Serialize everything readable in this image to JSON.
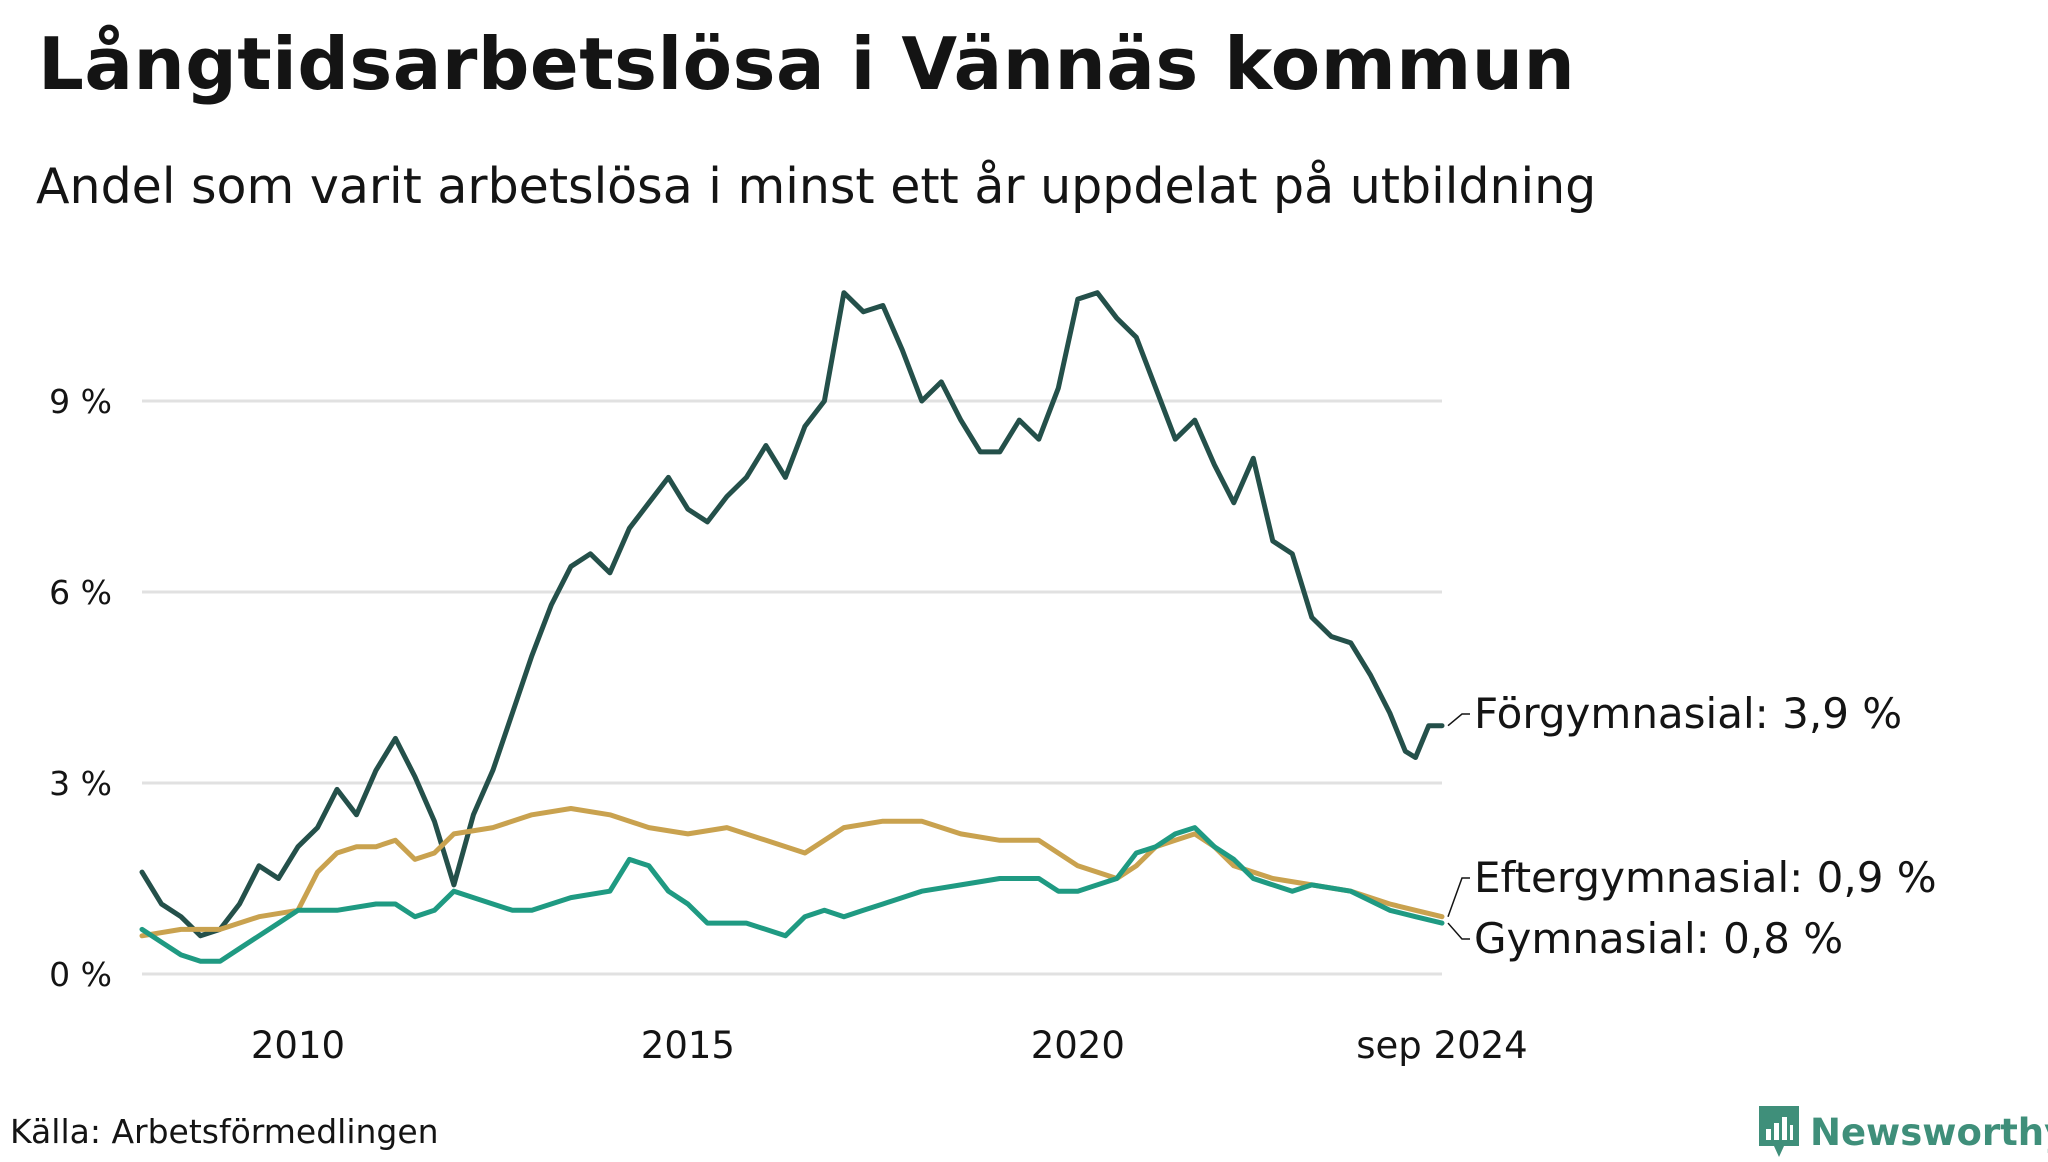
{
  "header": {
    "title": "Långtidsarbetslösa i Vännäs kommun",
    "subtitle": "Andel som varit arbetslösa i minst ett år uppdelat på utbildning"
  },
  "footer": {
    "source": "Källa: Arbetsförmedlingen",
    "brand": "Newsworthy",
    "brand_icon": "bar-chart-icon"
  },
  "chart_data": {
    "type": "line",
    "title": "Långtidsarbetslösa i Vännäs kommun",
    "subtitle": "Andel som varit arbetslösa i minst ett år uppdelat på utbildning",
    "xlabel": "",
    "ylabel": "",
    "xlim": [
      2008.0,
      2024.67
    ],
    "ylim": [
      0,
      11
    ],
    "yticks": [
      0,
      3,
      6,
      9
    ],
    "ytick_labels": [
      "0 %",
      "3 %",
      "6 %",
      "9 %"
    ],
    "xticks": [
      2010,
      2015,
      2020,
      2024.67
    ],
    "xtick_labels": [
      "2010",
      "2015",
      "2020",
      "sep 2024"
    ],
    "grid": "horizontal",
    "legend": "end-of-line labels",
    "series": [
      {
        "name": "Förgymnasial",
        "end_label": "Förgymnasial: 3,9 %",
        "color": "#24504a",
        "points": [
          [
            2008.0,
            1.6
          ],
          [
            2008.25,
            1.1
          ],
          [
            2008.5,
            0.9
          ],
          [
            2008.75,
            0.6
          ],
          [
            2009.0,
            0.7
          ],
          [
            2009.25,
            1.1
          ],
          [
            2009.5,
            1.7
          ],
          [
            2009.75,
            1.5
          ],
          [
            2010.0,
            2.0
          ],
          [
            2010.25,
            2.3
          ],
          [
            2010.5,
            2.9
          ],
          [
            2010.75,
            2.5
          ],
          [
            2011.0,
            3.2
          ],
          [
            2011.25,
            3.7
          ],
          [
            2011.5,
            3.1
          ],
          [
            2011.75,
            2.4
          ],
          [
            2012.0,
            1.4
          ],
          [
            2012.25,
            2.5
          ],
          [
            2012.5,
            3.2
          ],
          [
            2012.75,
            4.1
          ],
          [
            2013.0,
            5.0
          ],
          [
            2013.25,
            5.8
          ],
          [
            2013.5,
            6.4
          ],
          [
            2013.75,
            6.6
          ],
          [
            2014.0,
            6.3
          ],
          [
            2014.25,
            7.0
          ],
          [
            2014.5,
            7.4
          ],
          [
            2014.75,
            7.8
          ],
          [
            2015.0,
            7.3
          ],
          [
            2015.25,
            7.1
          ],
          [
            2015.5,
            7.5
          ],
          [
            2015.75,
            7.8
          ],
          [
            2016.0,
            8.3
          ],
          [
            2016.25,
            7.8
          ],
          [
            2016.5,
            8.6
          ],
          [
            2016.75,
            9.0
          ],
          [
            2017.0,
            10.7
          ],
          [
            2017.25,
            10.4
          ],
          [
            2017.5,
            10.5
          ],
          [
            2017.75,
            9.8
          ],
          [
            2018.0,
            9.0
          ],
          [
            2018.25,
            9.3
          ],
          [
            2018.5,
            8.7
          ],
          [
            2018.75,
            8.2
          ],
          [
            2019.0,
            8.2
          ],
          [
            2019.25,
            8.7
          ],
          [
            2019.5,
            8.4
          ],
          [
            2019.75,
            9.2
          ],
          [
            2020.0,
            10.6
          ],
          [
            2020.25,
            10.7
          ],
          [
            2020.5,
            10.3
          ],
          [
            2020.75,
            10.0
          ],
          [
            2021.0,
            9.2
          ],
          [
            2021.25,
            8.4
          ],
          [
            2021.5,
            8.7
          ],
          [
            2021.75,
            8.0
          ],
          [
            2022.0,
            7.4
          ],
          [
            2022.25,
            8.1
          ],
          [
            2022.5,
            6.8
          ],
          [
            2022.75,
            6.6
          ],
          [
            2023.0,
            5.6
          ],
          [
            2023.25,
            5.3
          ],
          [
            2023.5,
            5.2
          ],
          [
            2023.75,
            4.7
          ],
          [
            2024.0,
            4.1
          ],
          [
            2024.2,
            3.5
          ],
          [
            2024.33,
            3.4
          ],
          [
            2024.5,
            3.9
          ],
          [
            2024.67,
            3.9
          ]
        ]
      },
      {
        "name": "Eftergymnasial",
        "end_label": "Eftergymnasial: 0,9 %",
        "color": "#c9a24f",
        "points": [
          [
            2008.0,
            0.6
          ],
          [
            2008.5,
            0.7
          ],
          [
            2009.0,
            0.7
          ],
          [
            2009.5,
            0.9
          ],
          [
            2010.0,
            1.0
          ],
          [
            2010.25,
            1.6
          ],
          [
            2010.5,
            1.9
          ],
          [
            2010.75,
            2.0
          ],
          [
            2011.0,
            2.0
          ],
          [
            2011.25,
            2.1
          ],
          [
            2011.5,
            1.8
          ],
          [
            2011.75,
            1.9
          ],
          [
            2012.0,
            2.2
          ],
          [
            2012.5,
            2.3
          ],
          [
            2013.0,
            2.5
          ],
          [
            2013.5,
            2.6
          ],
          [
            2014.0,
            2.5
          ],
          [
            2014.5,
            2.3
          ],
          [
            2015.0,
            2.2
          ],
          [
            2015.5,
            2.3
          ],
          [
            2016.0,
            2.1
          ],
          [
            2016.5,
            1.9
          ],
          [
            2017.0,
            2.3
          ],
          [
            2017.5,
            2.4
          ],
          [
            2018.0,
            2.4
          ],
          [
            2018.5,
            2.2
          ],
          [
            2019.0,
            2.1
          ],
          [
            2019.5,
            2.1
          ],
          [
            2020.0,
            1.7
          ],
          [
            2020.25,
            1.6
          ],
          [
            2020.5,
            1.5
          ],
          [
            2020.75,
            1.7
          ],
          [
            2021.0,
            2.0
          ],
          [
            2021.25,
            2.1
          ],
          [
            2021.5,
            2.2
          ],
          [
            2021.75,
            2.0
          ],
          [
            2022.0,
            1.7
          ],
          [
            2022.5,
            1.5
          ],
          [
            2023.0,
            1.4
          ],
          [
            2023.5,
            1.3
          ],
          [
            2024.0,
            1.1
          ],
          [
            2024.33,
            1.0
          ],
          [
            2024.67,
            0.9
          ]
        ]
      },
      {
        "name": "Gymnasial",
        "end_label": "Gymnasial: 0,8 %",
        "color": "#1f9a82",
        "points": [
          [
            2008.0,
            0.7
          ],
          [
            2008.25,
            0.5
          ],
          [
            2008.5,
            0.3
          ],
          [
            2008.75,
            0.2
          ],
          [
            2009.0,
            0.2
          ],
          [
            2009.25,
            0.4
          ],
          [
            2009.5,
            0.6
          ],
          [
            2009.75,
            0.8
          ],
          [
            2010.0,
            1.0
          ],
          [
            2010.5,
            1.0
          ],
          [
            2011.0,
            1.1
          ],
          [
            2011.25,
            1.1
          ],
          [
            2011.5,
            0.9
          ],
          [
            2011.75,
            1.0
          ],
          [
            2012.0,
            1.3
          ],
          [
            2012.25,
            1.2
          ],
          [
            2012.5,
            1.1
          ],
          [
            2012.75,
            1.0
          ],
          [
            2013.0,
            1.0
          ],
          [
            2013.5,
            1.2
          ],
          [
            2014.0,
            1.3
          ],
          [
            2014.25,
            1.8
          ],
          [
            2014.5,
            1.7
          ],
          [
            2014.75,
            1.3
          ],
          [
            2015.0,
            1.1
          ],
          [
            2015.25,
            0.8
          ],
          [
            2015.5,
            0.8
          ],
          [
            2015.75,
            0.8
          ],
          [
            2016.0,
            0.7
          ],
          [
            2016.25,
            0.6
          ],
          [
            2016.5,
            0.9
          ],
          [
            2016.75,
            1.0
          ],
          [
            2017.0,
            0.9
          ],
          [
            2017.25,
            1.0
          ],
          [
            2017.5,
            1.1
          ],
          [
            2017.75,
            1.2
          ],
          [
            2018.0,
            1.3
          ],
          [
            2018.5,
            1.4
          ],
          [
            2019.0,
            1.5
          ],
          [
            2019.5,
            1.5
          ],
          [
            2019.75,
            1.3
          ],
          [
            2020.0,
            1.3
          ],
          [
            2020.5,
            1.5
          ],
          [
            2020.75,
            1.9
          ],
          [
            2021.0,
            2.0
          ],
          [
            2021.25,
            2.2
          ],
          [
            2021.5,
            2.3
          ],
          [
            2021.75,
            2.0
          ],
          [
            2022.0,
            1.8
          ],
          [
            2022.25,
            1.5
          ],
          [
            2022.5,
            1.4
          ],
          [
            2022.75,
            1.3
          ],
          [
            2023.0,
            1.4
          ],
          [
            2023.5,
            1.3
          ],
          [
            2024.0,
            1.0
          ],
          [
            2024.33,
            0.9
          ],
          [
            2024.67,
            0.8
          ]
        ]
      }
    ]
  }
}
